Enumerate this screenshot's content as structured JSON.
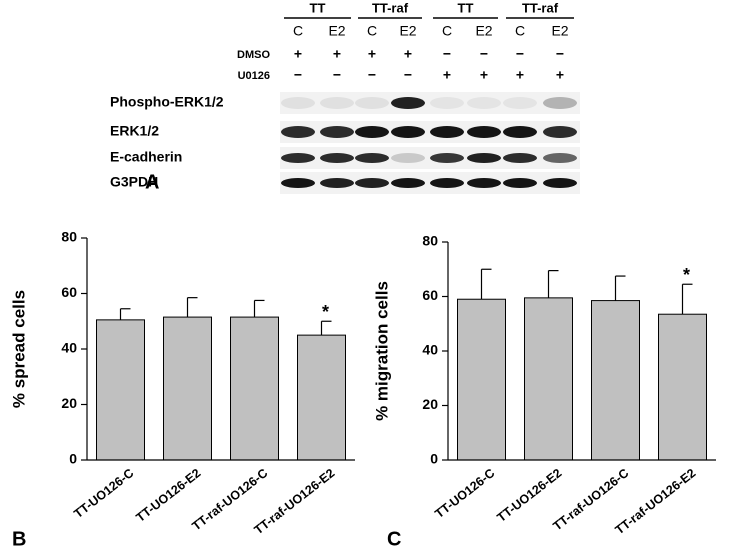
{
  "blot": {
    "label": "A",
    "groups": [
      "TT",
      "TT-raf",
      "TT",
      "TT-raf"
    ],
    "lanes": [
      "C",
      "E2",
      "C",
      "E2",
      "C",
      "E2",
      "C",
      "E2"
    ],
    "treatments": [
      {
        "name": "DMSO",
        "signs": [
          "+",
          "+",
          "+",
          "+",
          "−",
          "−",
          "−",
          "−"
        ]
      },
      {
        "name": "U0126",
        "signs": [
          "−",
          "−",
          "−",
          "−",
          "+",
          "+",
          "+",
          "+"
        ]
      }
    ],
    "bands": [
      "Phospho-ERK1/2",
      "ERK1/2",
      "E-cadherin",
      "G3PDH"
    ]
  },
  "chart_data": [
    {
      "type": "bar",
      "panel_label": "B",
      "y_label": "% spread cells",
      "categories": [
        "TT-UO126-C",
        "TT-UO126-E2",
        "TT-raf-UO126-C",
        "TT-raf-UO126-E2"
      ],
      "values": [
        50.5,
        51.5,
        51.5,
        45
      ],
      "errors": [
        4,
        7,
        6,
        5
      ],
      "color": "#c0c0c0",
      "ylim": [
        0,
        80
      ],
      "yticks": [
        0,
        20,
        40,
        60,
        80
      ],
      "annotation": "*"
    },
    {
      "type": "bar",
      "panel_label": "C",
      "y_label": "% migration cells",
      "categories": [
        "TT-UO126-C",
        "TT-UO126-E2",
        "TT-raf-UO126-C",
        "TT-raf-UO126-E2"
      ],
      "values": [
        59,
        59.5,
        58.5,
        53.5
      ],
      "errors": [
        11,
        10,
        9,
        11
      ],
      "color": "#c0c0c0",
      "ylim": [
        0,
        80
      ],
      "yticks": [
        0,
        20,
        40,
        60,
        80
      ],
      "annotation": "*"
    }
  ]
}
